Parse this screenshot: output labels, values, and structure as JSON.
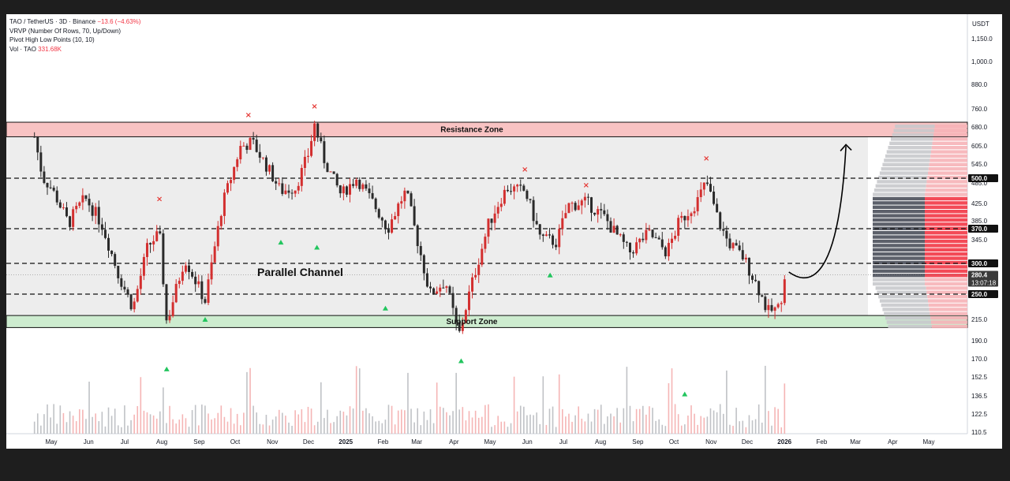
{
  "header": {
    "symbol": "TAO / TetherUS · 3D · Binance",
    "change": "−13.6 (−4.63%)",
    "indicators": [
      {
        "label": "VRVP (Number Of Rows, 70, Up/Down)"
      },
      {
        "label": "Pivot High Low Points (10, 10)"
      }
    ],
    "volume_label": "Vol · TAO",
    "volume_value": "331.68K"
  },
  "price_axis": {
    "currency": "USDT",
    "ticks": [
      "1,150.0",
      "1,000.0",
      "880.0",
      "760.0",
      "680.0",
      "605.0",
      "545.0",
      "485.0",
      "425.0",
      "385.0",
      "345.0",
      "300.0",
      "250.0",
      "215.0",
      "190.0",
      "170.0",
      "152.5",
      "136.5",
      "122.5",
      "110.5"
    ],
    "badges": [
      {
        "label": "500.0",
        "kind": "level"
      },
      {
        "label": "370.0",
        "kind": "level"
      },
      {
        "label": "300.0",
        "kind": "level"
      },
      {
        "label": "280.4",
        "sub": "13:07:18",
        "kind": "price"
      },
      {
        "label": "250.0",
        "kind": "level"
      }
    ]
  },
  "time_axis": {
    "ticks": [
      "May",
      "Jun",
      "Jul",
      "Aug",
      "Sep",
      "Oct",
      "Nov",
      "Dec",
      "2025",
      "Feb",
      "Mar",
      "Apr",
      "May",
      "Jun",
      "Jul",
      "Aug",
      "Sep",
      "Oct",
      "Nov",
      "Dec",
      "2026",
      "Feb",
      "Mar",
      "Apr",
      "May"
    ]
  },
  "annotations": {
    "resistance": "Resistance Zone",
    "support": "Support Zone",
    "channel": "Parallel Channel"
  },
  "colors": {
    "up": "#d32f2f",
    "down": "#2a2a2a",
    "resistance_fill": "#f8c3c3",
    "support_fill": "#cdeccf",
    "channel_fill": "#ebebeb",
    "pivot_high": "#e53935",
    "pivot_low": "#26a69a"
  },
  "chart_data": {
    "type": "candlestick",
    "timeframe": "3D",
    "log_scale": true,
    "zones": {
      "resistance": [
        640,
        700
      ],
      "support": [
        205,
        220
      ],
      "channel": [
        220,
        640
      ]
    },
    "levels": [
      500,
      370,
      300,
      250
    ],
    "current_price": 280.4,
    "price_points": [
      [
        "2024-04-17",
        640
      ],
      [
        "2024-04-24",
        500
      ],
      [
        "2024-05-01",
        470
      ],
      [
        "2024-05-15",
        380
      ],
      [
        "2024-05-29",
        440
      ],
      [
        "2024-06-12",
        380
      ],
      [
        "2024-06-26",
        280
      ],
      [
        "2024-07-08",
        230
      ],
      [
        "2024-07-20",
        330
      ],
      [
        "2024-07-30",
        360
      ],
      [
        "2024-08-05",
        210
      ],
      [
        "2024-08-20",
        310
      ],
      [
        "2024-09-06",
        240
      ],
      [
        "2024-09-20",
        420
      ],
      [
        "2024-10-05",
        600
      ],
      [
        "2024-10-15",
        620
      ],
      [
        "2024-10-30",
        520
      ],
      [
        "2024-11-08",
        460
      ],
      [
        "2024-11-20",
        470
      ],
      [
        "2024-12-01",
        580
      ],
      [
        "2024-12-06",
        690
      ],
      [
        "2024-12-14",
        560
      ],
      [
        "2024-12-28",
        450
      ],
      [
        "2025-01-10",
        500
      ],
      [
        "2025-01-25",
        420
      ],
      [
        "2025-02-05",
        370
      ],
      [
        "2025-02-20",
        460
      ],
      [
        "2025-03-05",
        310
      ],
      [
        "2025-03-12",
        250
      ],
      [
        "2025-03-25",
        270
      ],
      [
        "2025-04-05",
        195
      ],
      [
        "2025-04-15",
        260
      ],
      [
        "2025-04-30",
        380
      ],
      [
        "2025-05-15",
        470
      ],
      [
        "2025-05-30",
        460
      ],
      [
        "2025-06-12",
        350
      ],
      [
        "2025-06-25",
        340
      ],
      [
        "2025-07-05",
        420
      ],
      [
        "2025-07-20",
        430
      ],
      [
        "2025-08-05",
        390
      ],
      [
        "2025-08-25",
        320
      ],
      [
        "2025-09-10",
        360
      ],
      [
        "2025-09-25",
        320
      ],
      [
        "2025-10-05",
        380
      ],
      [
        "2025-10-20",
        430
      ],
      [
        "2025-10-28",
        490
      ],
      [
        "2025-11-05",
        400
      ],
      [
        "2025-11-15",
        340
      ],
      [
        "2025-11-28",
        310
      ],
      [
        "2025-12-10",
        260
      ],
      [
        "2025-12-18",
        225
      ],
      [
        "2025-12-28",
        230
      ],
      [
        "2026-01-02",
        294
      ]
    ],
    "pivot_highs": [
      [
        "2024-07-30",
        430
      ],
      [
        "2024-10-12",
        720
      ],
      [
        "2024-12-06",
        760
      ],
      [
        "2025-05-30",
        520
      ],
      [
        "2025-07-20",
        470
      ],
      [
        "2025-10-28",
        555
      ]
    ],
    "pivot_lows": [
      [
        "2024-08-05",
        160
      ],
      [
        "2024-09-06",
        215
      ],
      [
        "2024-11-08",
        340
      ],
      [
        "2024-12-08",
        330
      ],
      [
        "2025-02-03",
        230
      ],
      [
        "2025-04-07",
        168
      ],
      [
        "2025-06-20",
        280
      ],
      [
        "2025-10-10",
        138
      ]
    ],
    "projection": {
      "from": [
        "2026-01-02",
        285
      ],
      "to": [
        "2026-03-01",
        640
      ]
    }
  }
}
